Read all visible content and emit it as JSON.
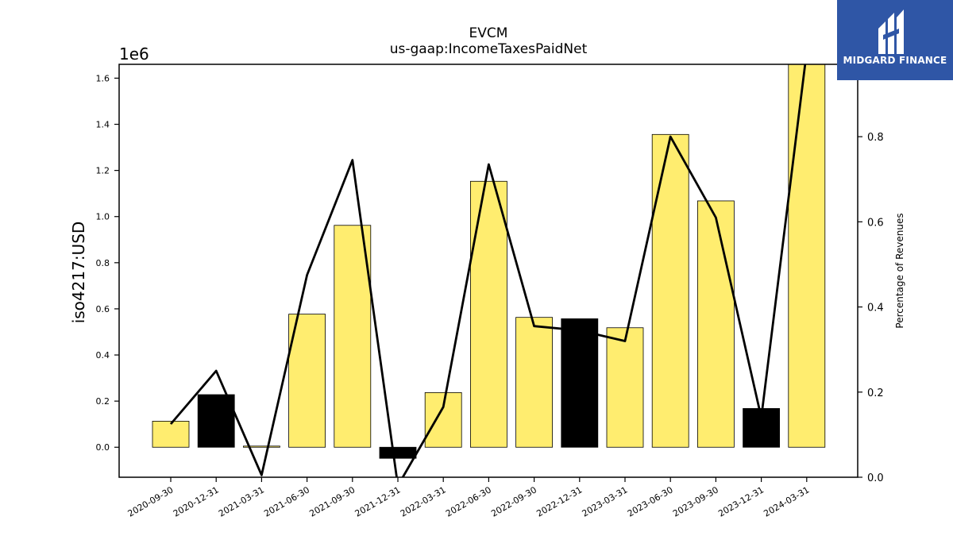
{
  "title": "EVCM",
  "subtitle": "us-gaap:IncomeTaxesPaidNet",
  "logo": {
    "text": "MIDGARD FINANCE",
    "icon": "midgard-logo-icon",
    "color": "#2f56a6"
  },
  "chart_data": {
    "type": "bar",
    "title": "EVCM",
    "subtitle": "us-gaap:IncomeTaxesPaidNet",
    "ylabel": "iso4217:USD",
    "ylabel_right": "Percentage of Revenues",
    "y_offset_label": "1e6",
    "categories": [
      "2020-09-30",
      "2020-12-31",
      "2021-03-31",
      "2021-06-30",
      "2021-09-30",
      "2021-12-31",
      "2022-03-31",
      "2022-06-30",
      "2022-09-30",
      "2022-12-31",
      "2023-03-31",
      "2023-06-30",
      "2023-09-30",
      "2023-12-31",
      "2024-03-31"
    ],
    "series": [
      {
        "type": "bar",
        "values": [
          113000,
          228000,
          5000,
          577000,
          962000,
          -48000,
          237000,
          1153000,
          563000,
          557000,
          518000,
          1356000,
          1068000,
          168000,
          1660000
        ],
        "colors": [
          "#ffed6f",
          "#000000",
          "#ffed6f",
          "#ffed6f",
          "#ffed6f",
          "#000000",
          "#ffed6f",
          "#ffed6f",
          "#ffed6f",
          "#000000",
          "#ffed6f",
          "#ffed6f",
          "#ffed6f",
          "#000000",
          "#ffed6f"
        ]
      },
      {
        "type": "line",
        "axis": "right",
        "color": "#000000",
        "values": [
          0.125,
          0.25,
          0.005,
          0.475,
          0.745,
          -0.02,
          0.165,
          0.735,
          0.355,
          0.345,
          0.32,
          0.8,
          0.61,
          0.14,
          1.0
        ]
      }
    ],
    "ylim": [
      -130000,
      1660000
    ],
    "y2lim": [
      0,
      0.97
    ],
    "yticks": [
      0.0,
      0.2,
      0.4,
      0.6,
      0.8,
      1.0,
      1.2,
      1.4,
      1.6
    ],
    "ytick_labels": [
      "0.0",
      "0.2",
      "0.4",
      "0.6",
      "0.8",
      "1.0",
      "1.2",
      "1.4",
      "1.6"
    ],
    "y2ticks": [
      0.0,
      0.2,
      0.4,
      0.6,
      0.8
    ],
    "y2tick_labels": [
      "0.0",
      "0.2",
      "0.4",
      "0.6",
      "0.8"
    ],
    "grid": false,
    "legend": "none"
  }
}
